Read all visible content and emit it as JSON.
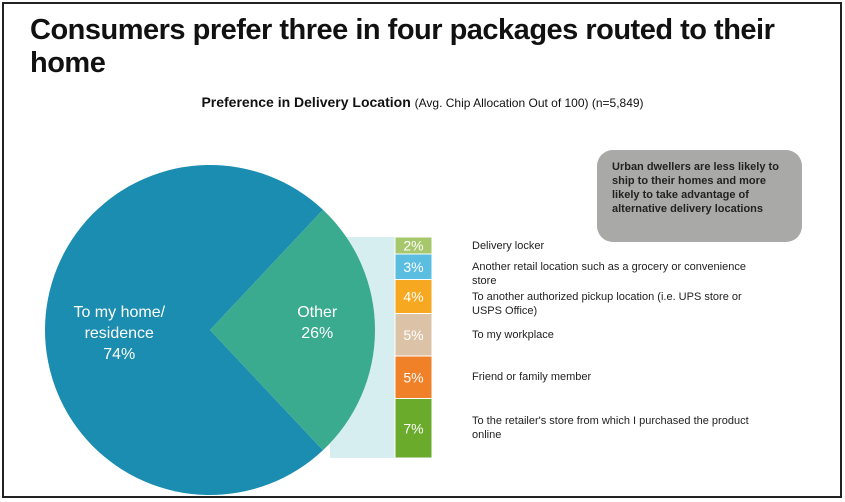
{
  "chart_data": [
    {
      "type": "pie",
      "title": "Consumers prefer three in four packages routed to their home",
      "subtitle": "Preference in Delivery Location",
      "subtitle_note": "(Avg. Chip Allocation Out of 100) (n=5,849)",
      "annotation": "Urban dwellers are less likely to ship to their homes and more likely to take advantage of alternative delivery locations",
      "categories": [
        "To my home/ residence",
        "Other"
      ],
      "values": [
        74,
        26
      ],
      "value_labels": [
        "74%",
        "26%"
      ],
      "colors": [
        "#1a8db0",
        "#3aab8e"
      ]
    },
    {
      "type": "stacked-bar",
      "categories": [
        "Delivery locker",
        "Another retail location such as a grocery or convenience store",
        "To another authorized pickup location (i.e. UPS store or USPS Office)",
        "To my workplace",
        "Friend or family member",
        "To the retailer's store from which I purchased the product online"
      ],
      "values": [
        2,
        3,
        4,
        5,
        5,
        7
      ],
      "value_labels": [
        "2%",
        "3%",
        "4%",
        "5%",
        "5%",
        "7%"
      ],
      "colors": [
        "#a6c76c",
        "#5bbde0",
        "#f6a821",
        "#dcc3a8",
        "#f08129",
        "#6aab2c"
      ]
    }
  ]
}
